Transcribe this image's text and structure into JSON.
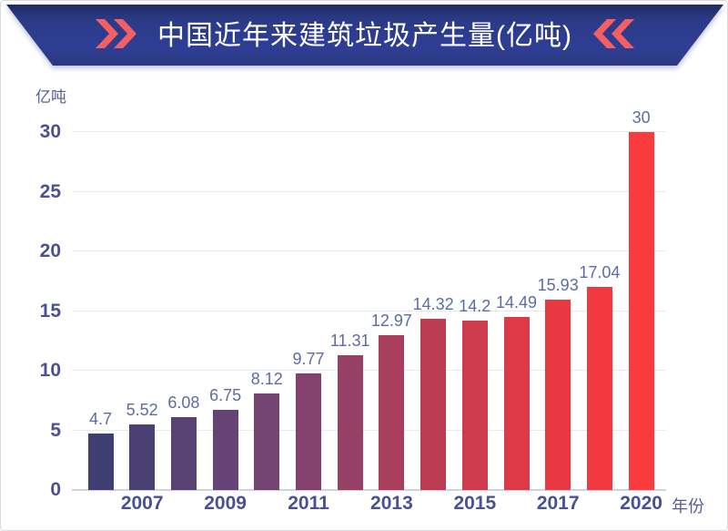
{
  "header": {
    "title": "中国近年来建筑垃圾产生量(亿吨)"
  },
  "chart_data": {
    "type": "bar",
    "title": "中国近年来建筑垃圾产生量(亿吨)",
    "unit_label": "亿吨",
    "axis_label_x": "年份",
    "values": [
      4.7,
      5.52,
      6.08,
      6.75,
      8.12,
      9.77,
      11.31,
      12.97,
      14.32,
      14.2,
      14.49,
      15.93,
      17.04,
      30
    ],
    "value_labels": [
      "4.7",
      "5.52",
      "6.08",
      "6.75",
      "8.12",
      "9.77",
      "11.31",
      "12.97",
      "14.32",
      "14.2",
      "14.49",
      "15.93",
      "17.04",
      "30"
    ],
    "x_ticks": [
      {
        "label": "2007",
        "bar_index": 1
      },
      {
        "label": "2009",
        "bar_index": 3
      },
      {
        "label": "2011",
        "bar_index": 5
      },
      {
        "label": "2013",
        "bar_index": 7
      },
      {
        "label": "2015",
        "bar_index": 9
      },
      {
        "label": "2017",
        "bar_index": 11
      },
      {
        "label": "2020",
        "bar_index": 13
      }
    ],
    "y_ticks": [
      0,
      5,
      10,
      15,
      20,
      25,
      30
    ],
    "ylim": [
      0,
      30
    ],
    "grid": true,
    "legend": false,
    "bar_colors": [
      "#3f3e73",
      "#4b4074",
      "#584274",
      "#654374",
      "#734372",
      "#84416d",
      "#964065",
      "#a93f5c",
      "#bc3d53",
      "#cd3b4d",
      "#dc3a47",
      "#e83842",
      "#f2393f",
      "#fa3b3e"
    ],
    "colors": {
      "axis_text": "#4a5192",
      "value_text": "#5e6ba3",
      "unit_text": "#565c99",
      "grid_line": "#e9e9f0",
      "axis_line": "#d2d2dc",
      "banner_blue": "#2f3e95",
      "chevron_red": "#f45f63",
      "title_text": "#ffffff"
    }
  }
}
